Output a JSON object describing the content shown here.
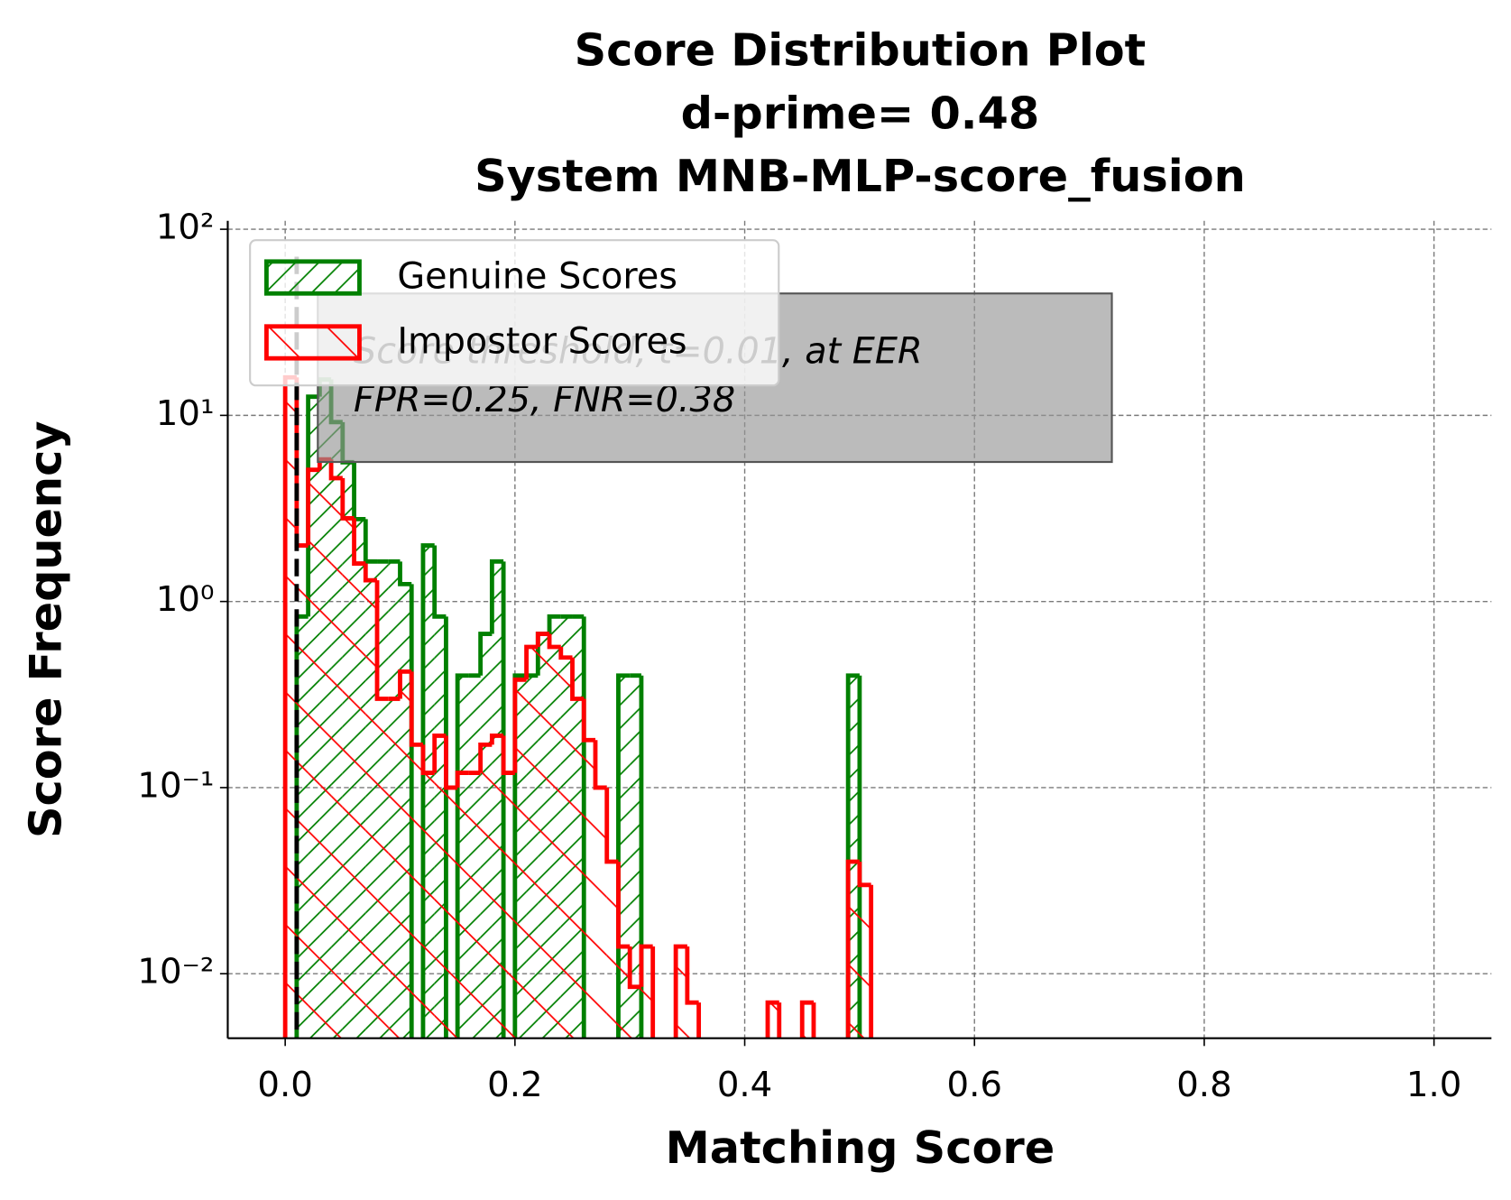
{
  "chart_data": {
    "type": "histogram",
    "title": [
      "Score Distribution Plot",
      "d-prime= 0.48",
      "System MNB-MLP-score_fusion"
    ],
    "xlabel": "Matching Score",
    "ylabel": "Score Frequency",
    "annotations": [
      "Score threshold, t=0.01, at EER",
      "FPR=0.25, FNR=0.38"
    ],
    "threshold": 0.01,
    "bins": [
      0,
      0.01,
      0.02,
      0.03,
      0.04,
      0.05,
      0.06,
      0.07,
      0.08,
      0.09,
      0.1,
      0.11,
      0.12,
      0.13,
      0.14,
      0.15,
      0.16,
      0.17,
      0.18,
      0.19,
      0.2,
      0.21,
      0.22,
      0.23,
      0.24,
      0.25,
      0.26,
      0.27,
      0.28,
      0.29,
      0.3,
      0.31,
      0.32,
      0.33,
      0.34,
      0.35,
      0.36,
      0.37,
      0.38,
      0.39,
      0.4,
      0.41,
      0.42,
      0.43,
      0.44,
      0.45,
      0.46,
      0.47,
      0.48,
      0.49,
      0.5,
      0.51,
      0.52
    ],
    "series": [
      {
        "name": "Genuine Scores",
        "color": "#008000",
        "hatch": "/",
        "values": [
          0,
          0.83,
          12.6,
          15.6,
          9.2,
          5.6,
          2.77,
          1.64,
          1.64,
          1.64,
          1.24,
          0,
          2.0,
          0.83,
          0,
          0.4,
          0.4,
          0.67,
          1.64,
          0,
          0.4,
          0.4,
          0.67,
          0.83,
          0.83,
          0.83,
          0,
          0,
          0,
          0.4,
          0.4,
          0,
          0,
          0,
          0,
          0,
          0,
          0,
          0,
          0,
          0,
          0,
          0,
          0,
          0,
          0,
          0,
          0,
          0,
          0.4,
          0,
          0
        ]
      },
      {
        "name": "Impostor Scores",
        "color": "#ff0000",
        "hatch": "\\",
        "values": [
          16,
          2.0,
          5.1,
          5.8,
          4.6,
          2.8,
          1.6,
          1.3,
          0.3,
          0.3,
          0.42,
          0.17,
          0.12,
          0.19,
          0.1,
          0.12,
          0.12,
          0.17,
          0.19,
          0.12,
          0.38,
          0.57,
          0.67,
          0.57,
          0.5,
          0.3,
          0.18,
          0.1,
          0.04,
          0.014,
          0.0085,
          0.014,
          0,
          0,
          0.014,
          0.007,
          0,
          0,
          0,
          0,
          0,
          0,
          0.007,
          0,
          0,
          0.007,
          0,
          0,
          0,
          0.04,
          0.03,
          0
        ]
      }
    ],
    "xlim": [
      -0.05,
      1.05
    ],
    "xticks": [
      {
        "value": 0,
        "label": "0.0"
      },
      {
        "value": 0.2,
        "label": "0.2"
      },
      {
        "value": 0.4,
        "label": "0.4"
      },
      {
        "value": 0.6,
        "label": "0.6"
      },
      {
        "value": 0.8,
        "label": "0.8"
      },
      {
        "value": 1.0,
        "label": "1.0"
      }
    ],
    "ylim": [
      0.0045,
      111
    ],
    "log_y": true,
    "yticks": [
      {
        "value": 0.01,
        "label": "10⁻²"
      },
      {
        "value": 0.1,
        "label": "10⁻¹"
      },
      {
        "value": 1,
        "label": "10⁰"
      },
      {
        "value": 10,
        "label": "10¹"
      },
      {
        "value": 100,
        "label": "10²"
      }
    ],
    "grid": true,
    "legend": "upper left"
  }
}
